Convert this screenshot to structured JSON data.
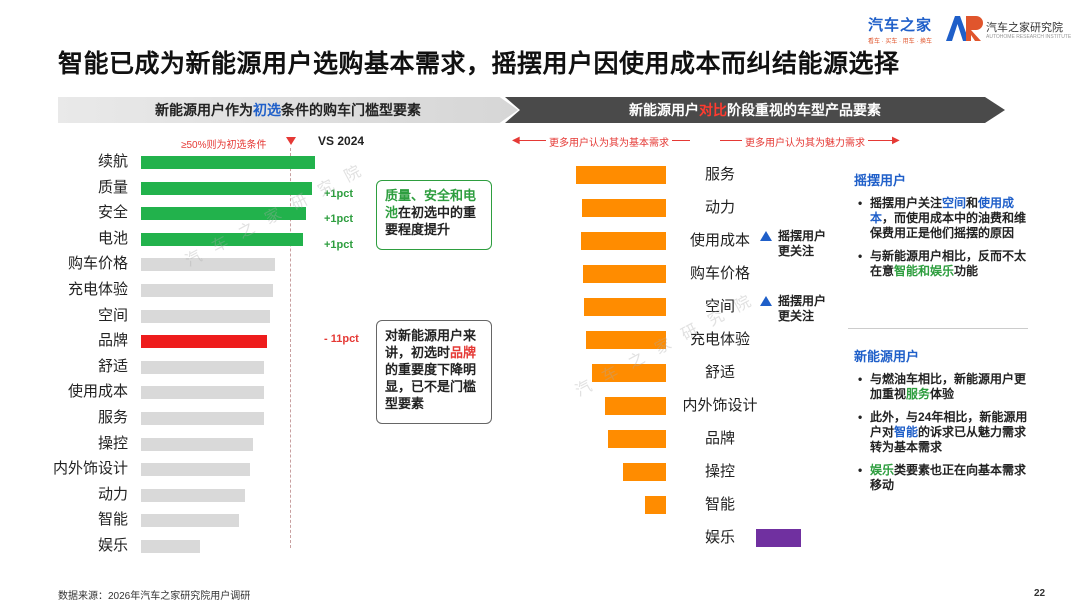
{
  "logos": {
    "brand_left": "汽车之家",
    "brand_left_sub": "看车 · 买车 · 用车 · 换车",
    "brand_right": "汽车之家研究院",
    "brand_right_sub": "AUTOHOME RESEARCH INSTITUTE"
  },
  "title": "智能已成为新能源用户选购基本需求，摇摆用户因使用成本而纠结能源选择",
  "left_panel": {
    "banner_pre": "新能源用户作为",
    "banner_hl": "初选",
    "banner_post": "条件的购车门槛型要素",
    "threshold_label": "≥50%则为初选条件",
    "vs_label": "VS 2024",
    "callout_green": {
      "hl": "质量、安全和电池",
      "rest": "在初选中的重要程度提升"
    },
    "callout_gray": {
      "pre": "对新能源用户来讲，初选时",
      "hl": "品牌",
      "post": "的重要度下降明显，已不是门槛型要素"
    }
  },
  "right_panel": {
    "banner_pre": "新能源用户",
    "banner_hl": "对比",
    "banner_post": "阶段重视的车型产品要素",
    "axis_left": "更多用户认为其为基本需求",
    "axis_right": "更多用户认为其为魅力需求",
    "note_swing": "摇摆用户更关注",
    "note_swing_l1": "摇摆用户",
    "note_swing_l2": "更关注"
  },
  "side": {
    "swing_head": "摇摆用户",
    "swing_items": [
      {
        "pre": "摇摆用户关注",
        "hl1": "空间",
        "mid": "和",
        "hl2": "使用成本",
        "post": "，而使用成本中的油费和维保费用正是他们摇摆的原因"
      },
      {
        "pre": "与新能源用户相比，反而不太在意",
        "hl1": "智能和娱乐",
        "post": "功能"
      }
    ],
    "nev_head": "新能源用户",
    "nev_items": [
      {
        "pre": "与燃油车相比，新能源用户更加重视",
        "hl1": "服务",
        "post": "体验"
      },
      {
        "pre": "此外，与24年相比，新能源用户对",
        "hl1": "智能",
        "post": "的诉求已从魅力需求转为基本需求"
      },
      {
        "hl1": "娱乐",
        "post": "类要素也正在向基本需求移动"
      }
    ]
  },
  "footer": {
    "source": "数据来源：2026年汽车之家研究院用户调研",
    "page": "22"
  },
  "watermark": "汽车之家研究院",
  "colors": {
    "green": "#22b24c",
    "gray": "#d9d9d9",
    "red": "#ee1c1c",
    "orange": "#ff8c00",
    "purple": "#7030a0",
    "blue": "#1f5fc9"
  },
  "chart_data": [
    {
      "type": "bar",
      "orientation": "horizontal",
      "categories": [
        "续航",
        "质量",
        "安全",
        "电池",
        "购车价格",
        "充电体验",
        "空间",
        "品牌",
        "舒适",
        "使用成本",
        "服务",
        "操控",
        "内外饰设计",
        "动力",
        "智能",
        "娱乐"
      ],
      "values": [
        62,
        61,
        59,
        58,
        48,
        47,
        46,
        45,
        44,
        44,
        44,
        40,
        39,
        37,
        35,
        21
      ],
      "threshold": 50,
      "highlight": {
        "green": [
          "续航",
          "质量",
          "安全",
          "电池"
        ],
        "red": [
          "品牌"
        ]
      },
      "vs_2024": [
        {
          "category": "质量",
          "change": "+1pct"
        },
        {
          "category": "安全",
          "change": "+1pct"
        },
        {
          "category": "电池",
          "change": "+1pct"
        },
        {
          "category": "品牌",
          "change": "- 11pct"
        }
      ],
      "xlim": [
        0,
        100
      ],
      "grid": false
    },
    {
      "type": "bar",
      "orientation": "diverging",
      "categories": [
        "服务",
        "动力",
        "使用成本",
        "购车价格",
        "空间",
        "充电体验",
        "舒适",
        "内外饰设计",
        "品牌",
        "操控",
        "智能",
        "娱乐"
      ],
      "values": [
        -90,
        -84,
        -85,
        -83,
        -82,
        -80,
        -74,
        -61,
        -58,
        -43,
        -21,
        45
      ],
      "direction": {
        "negative": "更多用户认为其为基本需求",
        "positive": "更多用户认为其为魅力需求"
      },
      "swing_focus": [
        "使用成本",
        "空间"
      ],
      "grid": false
    }
  ]
}
